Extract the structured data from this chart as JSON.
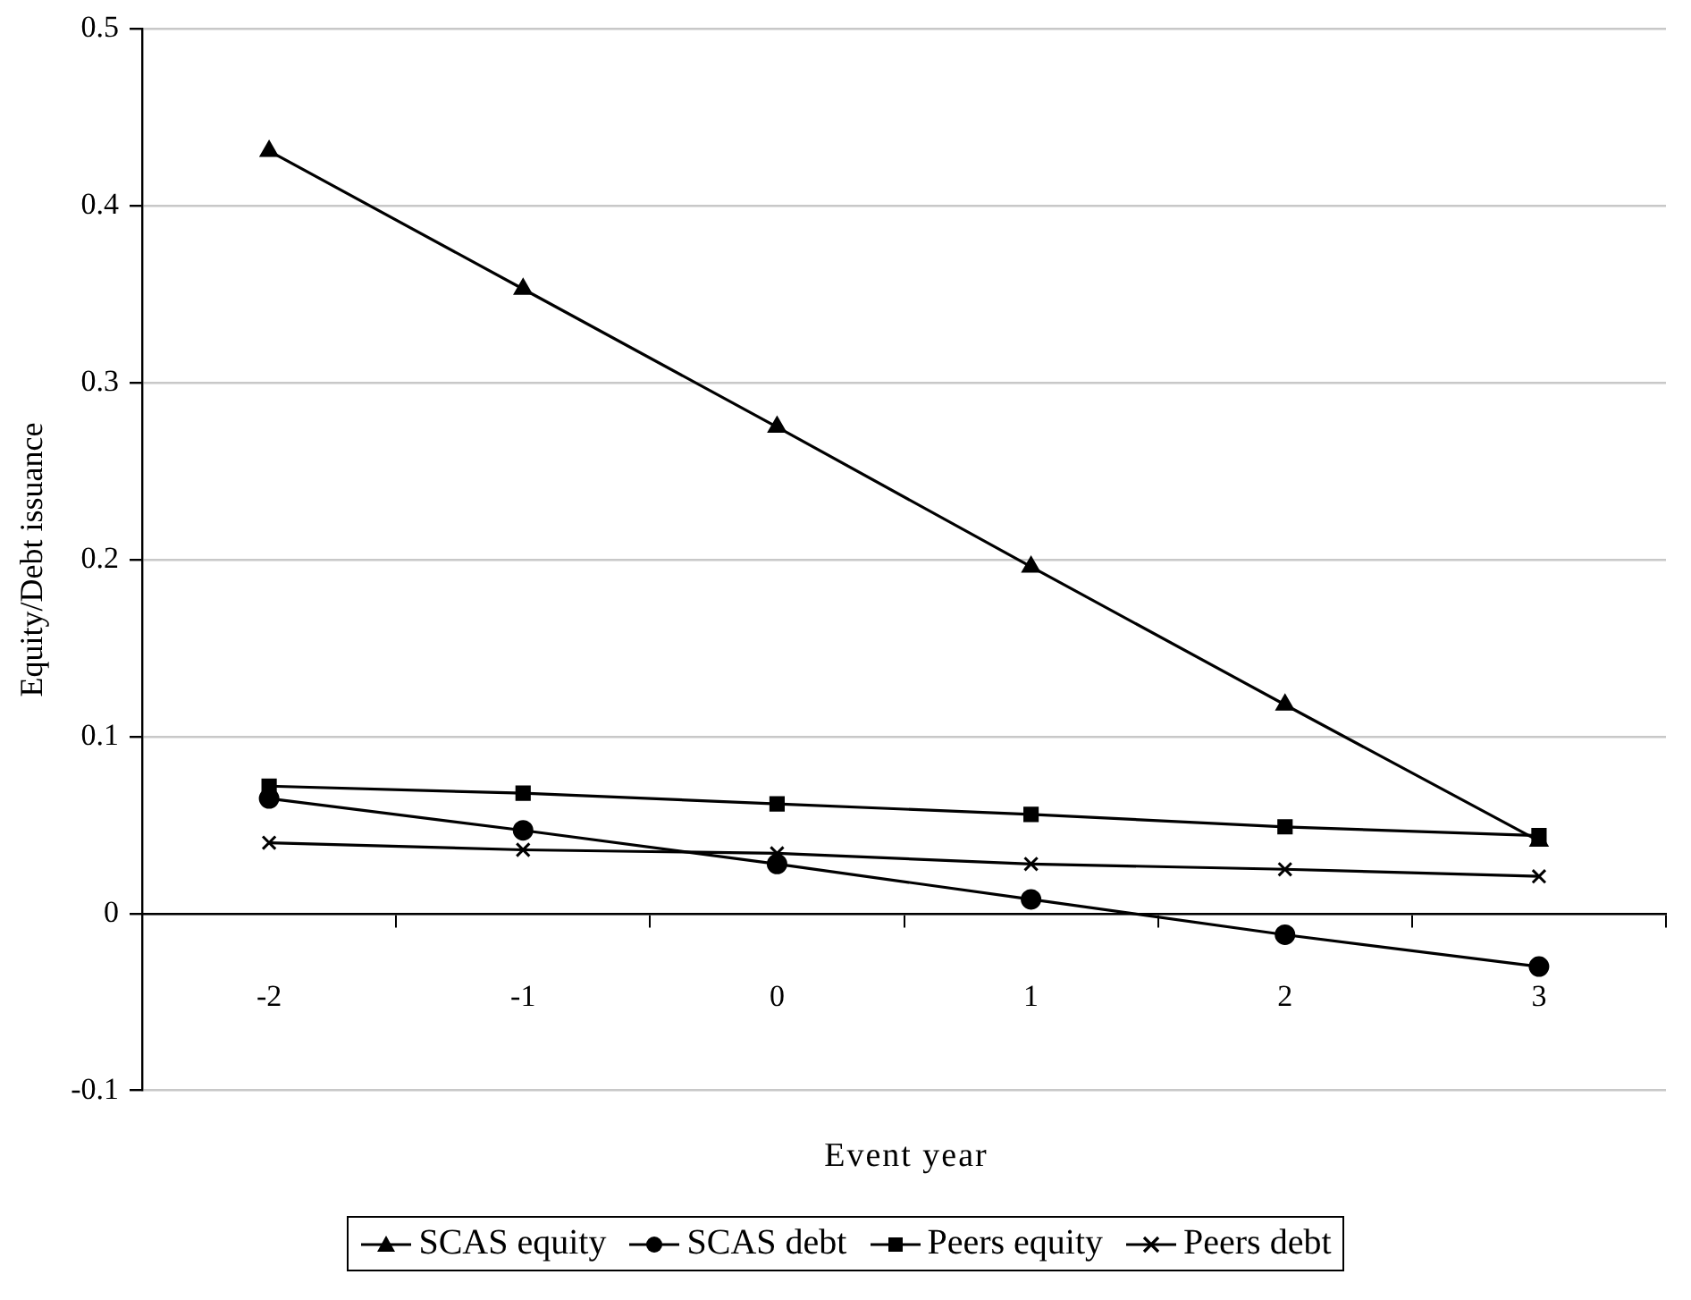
{
  "chart_data": {
    "type": "line",
    "xlabel": "Event year",
    "ylabel": "Equity/Debt issuance",
    "categories": [
      "-2",
      "-1",
      "0",
      "1",
      "2",
      "3"
    ],
    "series": [
      {
        "name": "SCAS equity",
        "color": "#000000",
        "marker": "triangle",
        "values": [
          0.431,
          0.353,
          0.275,
          0.196,
          0.118,
          0.041
        ]
      },
      {
        "name": "SCAS debt",
        "color": "#000000",
        "marker": "circle",
        "values": [
          0.065,
          0.047,
          0.028,
          0.008,
          -0.012,
          -0.03
        ]
      },
      {
        "name": "Peers equity",
        "color": "#000000",
        "marker": "square",
        "values": [
          0.072,
          0.068,
          0.062,
          0.056,
          0.049,
          0.044
        ]
      },
      {
        "name": "Peers debt",
        "color": "#000000",
        "marker": "cross",
        "values": [
          0.04,
          0.036,
          0.034,
          0.028,
          0.025,
          0.021
        ]
      }
    ],
    "ylim": [
      -0.1,
      0.5
    ],
    "yticks": [
      -0.1,
      0,
      0.1,
      0.2,
      0.3,
      0.4,
      0.5
    ],
    "grid": "y",
    "legend": "bottom",
    "line_style": "solid"
  }
}
